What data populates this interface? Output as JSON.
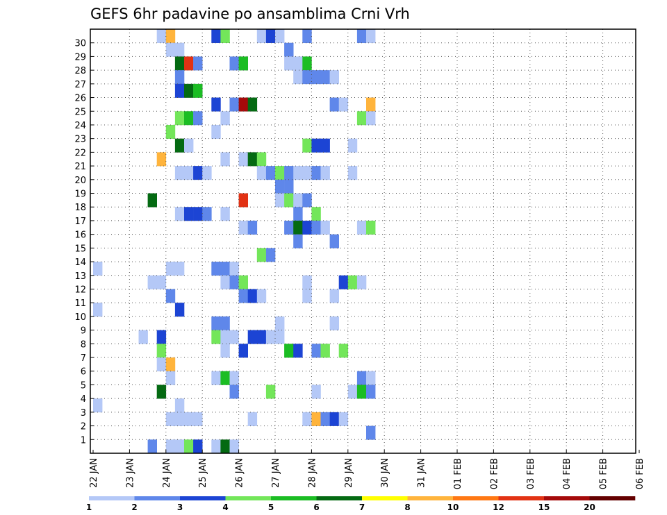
{
  "chart_data": {
    "type": "heatmap",
    "title": "GEFS 6hr padavine po ansamblima Crni Vrh",
    "x_tick_labels": [
      "22 JAN",
      "23 JAN",
      "24 JAN",
      "25 JAN",
      "26 JAN",
      "27 JAN",
      "28 JAN",
      "29 JAN",
      "30 JAN",
      "31 JAN",
      "01 FEB",
      "02 FEB",
      "03 FEB",
      "04 FEB",
      "05 FEB",
      "06 FEB"
    ],
    "y_tick_labels": [
      "1",
      "2",
      "3",
      "4",
      "5",
      "6",
      "7",
      "8",
      "9",
      "10",
      "11",
      "12",
      "13",
      "14",
      "15",
      "16",
      "17",
      "18",
      "19",
      "20",
      "21",
      "22",
      "23",
      "24",
      "25",
      "26",
      "27",
      "28",
      "29",
      "30"
    ],
    "steps_per_day": 4,
    "legend_labels": [
      "1",
      "2",
      "3",
      "4",
      "5",
      "6",
      "7",
      "8",
      "10",
      "12",
      "15",
      "20"
    ],
    "colors": [
      "#b4c8f7",
      "#5f87ea",
      "#1c44d4",
      "#73e65a",
      "#1bbd23",
      "#046a12",
      "#ffff00",
      "#ffb43c",
      "#ff7814",
      "#e23214",
      "#a50a0a",
      "#640000"
    ],
    "cells": [
      [
        30,
        7,
        1
      ],
      [
        30,
        8,
        8
      ],
      [
        30,
        13,
        3
      ],
      [
        30,
        14,
        4
      ],
      [
        30,
        18,
        1
      ],
      [
        30,
        19,
        3
      ],
      [
        30,
        20,
        1
      ],
      [
        30,
        23,
        2
      ],
      [
        30,
        29,
        2
      ],
      [
        30,
        30,
        1
      ],
      [
        29,
        8,
        1
      ],
      [
        29,
        9,
        1
      ],
      [
        29,
        21,
        2
      ],
      [
        28,
        9,
        6
      ],
      [
        28,
        10,
        10
      ],
      [
        28,
        11,
        2
      ],
      [
        28,
        15,
        2
      ],
      [
        28,
        16,
        5
      ],
      [
        28,
        21,
        1
      ],
      [
        28,
        22,
        1
      ],
      [
        28,
        23,
        5
      ],
      [
        27,
        9,
        2
      ],
      [
        27,
        22,
        1
      ],
      [
        27,
        23,
        2
      ],
      [
        27,
        24,
        2
      ],
      [
        27,
        25,
        2
      ],
      [
        27,
        26,
        1
      ],
      [
        26,
        9,
        3
      ],
      [
        26,
        10,
        6
      ],
      [
        26,
        11,
        5
      ],
      [
        25,
        13,
        3
      ],
      [
        25,
        15,
        2
      ],
      [
        25,
        16,
        11
      ],
      [
        25,
        17,
        6
      ],
      [
        25,
        26,
        2
      ],
      [
        25,
        27,
        1
      ],
      [
        25,
        30,
        8
      ],
      [
        24,
        9,
        4
      ],
      [
        24,
        10,
        5
      ],
      [
        24,
        11,
        2
      ],
      [
        24,
        14,
        1
      ],
      [
        24,
        29,
        4
      ],
      [
        24,
        30,
        1
      ],
      [
        23,
        8,
        4
      ],
      [
        23,
        13,
        1
      ],
      [
        22,
        9,
        6
      ],
      [
        22,
        10,
        1
      ],
      [
        22,
        23,
        4
      ],
      [
        22,
        24,
        3
      ],
      [
        22,
        25,
        3
      ],
      [
        22,
        28,
        1
      ],
      [
        21,
        7,
        8
      ],
      [
        21,
        14,
        1
      ],
      [
        21,
        16,
        1
      ],
      [
        21,
        17,
        6
      ],
      [
        21,
        18,
        4
      ],
      [
        20,
        9,
        1
      ],
      [
        20,
        10,
        1
      ],
      [
        20,
        11,
        3
      ],
      [
        20,
        12,
        1
      ],
      [
        20,
        18,
        1
      ],
      [
        20,
        19,
        2
      ],
      [
        20,
        20,
        4
      ],
      [
        20,
        21,
        2
      ],
      [
        20,
        22,
        1
      ],
      [
        20,
        23,
        1
      ],
      [
        20,
        24,
        2
      ],
      [
        20,
        25,
        1
      ],
      [
        20,
        28,
        1
      ],
      [
        19,
        20,
        2
      ],
      [
        19,
        21,
        2
      ],
      [
        18,
        6,
        6
      ],
      [
        18,
        16,
        10
      ],
      [
        18,
        20,
        1
      ],
      [
        18,
        21,
        4
      ],
      [
        18,
        22,
        1
      ],
      [
        18,
        23,
        2
      ],
      [
        17,
        9,
        1
      ],
      [
        17,
        10,
        3
      ],
      [
        17,
        11,
        3
      ],
      [
        17,
        12,
        2
      ],
      [
        17,
        14,
        1
      ],
      [
        17,
        22,
        2
      ],
      [
        17,
        24,
        4
      ],
      [
        16,
        16,
        1
      ],
      [
        16,
        17,
        2
      ],
      [
        16,
        21,
        2
      ],
      [
        16,
        22,
        6
      ],
      [
        16,
        23,
        3
      ],
      [
        16,
        24,
        2
      ],
      [
        16,
        25,
        1
      ],
      [
        16,
        29,
        1
      ],
      [
        16,
        30,
        4
      ],
      [
        15,
        22,
        2
      ],
      [
        15,
        26,
        2
      ],
      [
        14,
        18,
        4
      ],
      [
        14,
        19,
        2
      ],
      [
        13,
        0,
        1
      ],
      [
        13,
        8,
        1
      ],
      [
        13,
        9,
        1
      ],
      [
        13,
        13,
        2
      ],
      [
        13,
        14,
        2
      ],
      [
        13,
        15,
        1
      ],
      [
        12,
        6,
        1
      ],
      [
        12,
        7,
        1
      ],
      [
        12,
        14,
        1
      ],
      [
        12,
        15,
        2
      ],
      [
        12,
        16,
        4
      ],
      [
        12,
        23,
        1
      ],
      [
        12,
        27,
        3
      ],
      [
        12,
        28,
        4
      ],
      [
        12,
        29,
        1
      ],
      [
        11,
        8,
        2
      ],
      [
        11,
        16,
        2
      ],
      [
        11,
        17,
        3
      ],
      [
        11,
        18,
        1
      ],
      [
        11,
        23,
        1
      ],
      [
        11,
        26,
        1
      ],
      [
        10,
        0,
        1
      ],
      [
        10,
        9,
        3
      ],
      [
        9,
        13,
        2
      ],
      [
        9,
        14,
        2
      ],
      [
        9,
        20,
        1
      ],
      [
        9,
        26,
        1
      ],
      [
        8,
        5,
        1
      ],
      [
        8,
        7,
        3
      ],
      [
        8,
        13,
        4
      ],
      [
        8,
        14,
        1
      ],
      [
        8,
        15,
        1
      ],
      [
        8,
        17,
        3
      ],
      [
        8,
        18,
        3
      ],
      [
        8,
        19,
        1
      ],
      [
        8,
        20,
        1
      ],
      [
        7,
        7,
        4
      ],
      [
        7,
        14,
        1
      ],
      [
        7,
        16,
        3
      ],
      [
        7,
        21,
        5
      ],
      [
        7,
        22,
        3
      ],
      [
        7,
        24,
        2
      ],
      [
        7,
        25,
        4
      ],
      [
        7,
        27,
        4
      ],
      [
        6,
        7,
        1
      ],
      [
        6,
        8,
        8
      ],
      [
        5,
        8,
        1
      ],
      [
        5,
        13,
        1
      ],
      [
        5,
        14,
        5
      ],
      [
        5,
        15,
        1
      ],
      [
        5,
        29,
        2
      ],
      [
        5,
        30,
        1
      ],
      [
        4,
        7,
        6
      ],
      [
        4,
        15,
        2
      ],
      [
        4,
        19,
        4
      ],
      [
        4,
        24,
        1
      ],
      [
        4,
        28,
        1
      ],
      [
        4,
        29,
        5
      ],
      [
        4,
        30,
        2
      ],
      [
        3,
        0,
        1
      ],
      [
        3,
        9,
        1
      ],
      [
        2,
        8,
        1
      ],
      [
        2,
        9,
        1
      ],
      [
        2,
        10,
        1
      ],
      [
        2,
        11,
        1
      ],
      [
        2,
        17,
        1
      ],
      [
        2,
        23,
        1
      ],
      [
        2,
        24,
        8
      ],
      [
        2,
        25,
        2
      ],
      [
        2,
        26,
        3
      ],
      [
        2,
        27,
        1
      ],
      [
        1,
        30,
        2
      ],
      [
        0,
        6,
        2
      ],
      [
        0,
        8,
        1
      ],
      [
        0,
        9,
        1
      ],
      [
        0,
        10,
        4
      ],
      [
        0,
        11,
        3
      ],
      [
        0,
        13,
        1
      ],
      [
        0,
        14,
        6
      ],
      [
        0,
        15,
        1
      ]
    ]
  }
}
